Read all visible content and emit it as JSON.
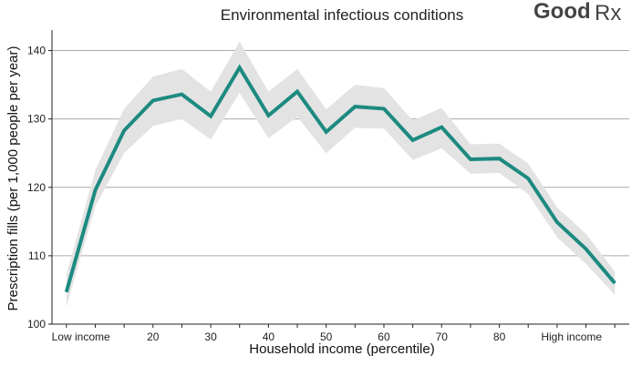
{
  "brand": {
    "word": "Good",
    "mark": "Rx"
  },
  "chart_data": {
    "type": "line",
    "title": "Environmental infectious conditions",
    "xlabel": "Household income (percentile)",
    "ylabel": "Prescription fills (per 1,000 people per year)",
    "xlim": [
      1,
      20
    ],
    "ylim": [
      100,
      143
    ],
    "yticks": [
      100,
      110,
      120,
      130,
      140
    ],
    "xtick_labels": [
      {
        "x": 1.5,
        "label": "Low income"
      },
      {
        "x": 4,
        "label": "20"
      },
      {
        "x": 6,
        "label": "30"
      },
      {
        "x": 8,
        "label": "40"
      },
      {
        "x": 10,
        "label": "50"
      },
      {
        "x": 12,
        "label": "60"
      },
      {
        "x": 14,
        "label": "70"
      },
      {
        "x": 16,
        "label": "80"
      },
      {
        "x": 18.5,
        "label": "High income"
      }
    ],
    "grid": "horizontal",
    "x": [
      1,
      2,
      3,
      4,
      5,
      6,
      7,
      8,
      9,
      10,
      11,
      12,
      13,
      14,
      15,
      16,
      17,
      18,
      19,
      20
    ],
    "series": [
      {
        "values": [
          104.7,
          119.6,
          128.3,
          132.7,
          133.6,
          130.4,
          137.5,
          130.5,
          134.0,
          128.1,
          131.8,
          131.5,
          126.9,
          128.8,
          124.1,
          124.2,
          121.3,
          114.9,
          111.0,
          106.0
        ],
        "lower": [
          102.5,
          117.2,
          125.0,
          129.0,
          130.0,
          127.0,
          133.8,
          127.2,
          130.3,
          125.0,
          128.7,
          128.6,
          124.0,
          125.7,
          122.0,
          122.1,
          119.0,
          112.7,
          108.8,
          104.3
        ],
        "upper": [
          107.2,
          122.5,
          131.5,
          136.2,
          137.3,
          134.0,
          141.3,
          134.0,
          137.3,
          131.4,
          135.0,
          134.5,
          129.8,
          131.6,
          126.3,
          126.4,
          123.5,
          117.1,
          113.2,
          107.7
        ]
      }
    ],
    "colors": {
      "line": "#1d8a80",
      "band": "#e3e3e3",
      "grid": "#aaaaaa",
      "axis": "#222222"
    }
  }
}
